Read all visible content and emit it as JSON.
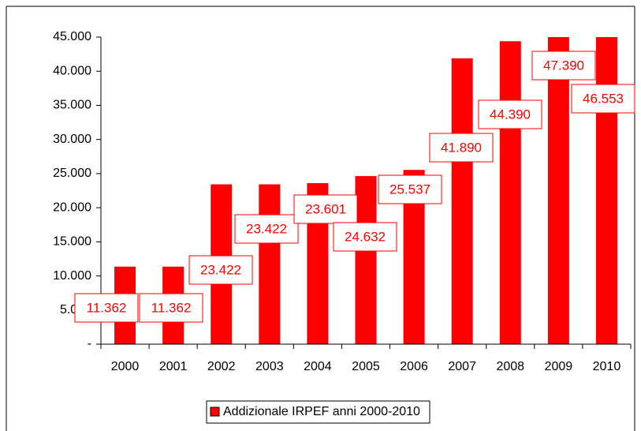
{
  "chart_data": {
    "type": "bar",
    "categories": [
      "2000",
      "2001",
      "2002",
      "2003",
      "2004",
      "2005",
      "2006",
      "2007",
      "2008",
      "2009",
      "2010"
    ],
    "series": [
      {
        "name": "Addizionale IRPEF anni 2000-2010",
        "color": "#ff0000",
        "values": [
          11362,
          11362,
          23422,
          23422,
          23601,
          24632,
          25537,
          41890,
          44390,
          47390,
          46553
        ],
        "value_labels": [
          "11.362",
          "11.362",
          "23.422",
          "23.422",
          "23.601",
          "24.632",
          "25.537",
          "41.890",
          "44.390",
          "47.390",
          "46.553"
        ]
      }
    ],
    "ylim": [
      0,
      45000
    ],
    "yticks": [
      {
        "value": 0,
        "label": "-"
      },
      {
        "value": 5000,
        "label": "5.000"
      },
      {
        "value": 10000,
        "label": "10.000"
      },
      {
        "value": 15000,
        "label": "15.000"
      },
      {
        "value": 20000,
        "label": "20.000"
      },
      {
        "value": 25000,
        "label": "25.000"
      },
      {
        "value": 30000,
        "label": "30.000"
      },
      {
        "value": 35000,
        "label": "35.000"
      },
      {
        "value": 40000,
        "label": "40.000"
      },
      {
        "value": 45000,
        "label": "45.000"
      }
    ],
    "grid": false,
    "legend": "bottom"
  }
}
